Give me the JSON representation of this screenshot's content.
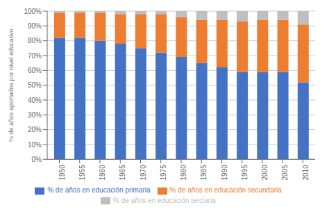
{
  "chart_data": {
    "type": "bar",
    "stacked": true,
    "ylabel": "% de años aportados por nivel educativo",
    "x": [
      1950,
      1955,
      1960,
      1965,
      1970,
      1975,
      1980,
      1985,
      1990,
      1995,
      2000,
      2005,
      2010
    ],
    "xlim": [
      1947,
      2013
    ],
    "xticks": [
      1950,
      1955,
      1960,
      1965,
      1970,
      1975,
      1980,
      1985,
      1990,
      1995,
      2000,
      2005,
      2010
    ],
    "ylim": [
      0,
      100
    ],
    "yticks": [
      {
        "value": 0,
        "label": "0%"
      },
      {
        "value": 10,
        "label": "10%"
      },
      {
        "value": 20,
        "label": "20%"
      },
      {
        "value": 30,
        "label": "30%"
      },
      {
        "value": 40,
        "label": "40%"
      },
      {
        "value": 50,
        "label": "50%"
      },
      {
        "value": 60,
        "label": "60%"
      },
      {
        "value": 70,
        "label": "70%"
      },
      {
        "value": 80,
        "label": "80%"
      },
      {
        "value": 90,
        "label": "90%"
      },
      {
        "value": 100,
        "label": "100%"
      }
    ],
    "grid": true,
    "series": [
      {
        "name": "% de años en educación primaria",
        "color": "#4472C4",
        "values": [
          82,
          82,
          80,
          78,
          75,
          72,
          69,
          65,
          62,
          59,
          59,
          59,
          52
        ]
      },
      {
        "name": "% de años en educación secundaria",
        "color": "#ED7D31",
        "values": [
          17,
          17,
          19,
          20,
          23,
          26,
          27,
          29,
          32,
          34,
          35,
          35,
          39
        ]
      },
      {
        "name": "% de años en educación terciaria",
        "color": "#BFBFBF",
        "values": [
          1,
          1,
          1,
          2,
          2,
          2,
          4,
          6,
          6,
          7,
          6,
          6,
          9
        ]
      }
    ]
  }
}
